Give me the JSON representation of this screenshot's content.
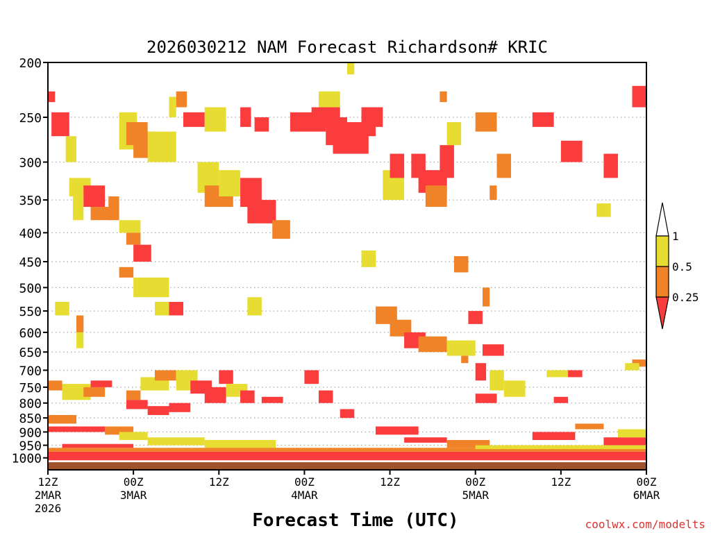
{
  "chart_data": {
    "type": "heatmap",
    "title": "2026030212 NAM Forecast Richardson# KRIC",
    "xlabel": "Forecast Time (UTC)",
    "ylabel": "Pressure (hPa)",
    "ylim": [
      1050,
      200
    ],
    "xlim_hours": [
      0,
      84
    ],
    "y_ticks": [
      200,
      250,
      300,
      350,
      400,
      450,
      500,
      550,
      600,
      650,
      700,
      750,
      800,
      850,
      900,
      950,
      1000
    ],
    "x_ticks": [
      {
        "hour": 0,
        "top": "12Z",
        "mid": "2MAR",
        "bottom": "2026"
      },
      {
        "hour": 12,
        "top": "00Z",
        "mid": "3MAR",
        "bottom": ""
      },
      {
        "hour": 24,
        "top": "12Z",
        "mid": "",
        "bottom": ""
      },
      {
        "hour": 36,
        "top": "00Z",
        "mid": "4MAR",
        "bottom": ""
      },
      {
        "hour": 48,
        "top": "12Z",
        "mid": "",
        "bottom": ""
      },
      {
        "hour": 60,
        "top": "00Z",
        "mid": "5MAR",
        "bottom": ""
      },
      {
        "hour": 72,
        "top": "12Z",
        "mid": "",
        "bottom": ""
      },
      {
        "hour": 84,
        "top": "00Z",
        "mid": "6MAR",
        "bottom": ""
      }
    ],
    "colorbar": {
      "bins": [
        {
          "label": "0.25",
          "color": "#fa3c3c",
          "range": "< 0.25"
        },
        {
          "label": "0.5",
          "color": "#f08228",
          "range": "0.25 - 0.5"
        },
        {
          "label": "1",
          "color": "#e6dc32",
          "range": "0.5 - 1"
        },
        {
          "label": "",
          "color": "#ffffff",
          "range": "> 1"
        }
      ],
      "tick_labels": [
        "1",
        "0.5",
        "0.25"
      ]
    },
    "surface_color": "#a0522d",
    "color_key": {
      "r": "#fa3c3c",
      "o": "#f08228",
      "y": "#e6dc32"
    },
    "patches": [
      {
        "t": [
          0,
          1
        ],
        "p": [
          225,
          235
        ],
        "c": "r"
      },
      {
        "t": [
          0.5,
          3
        ],
        "p": [
          245,
          270
        ],
        "c": "r"
      },
      {
        "t": [
          2.5,
          4
        ],
        "p": [
          270,
          300
        ],
        "c": "y"
      },
      {
        "t": [
          3,
          6
        ],
        "p": [
          320,
          345
        ],
        "c": "y"
      },
      {
        "t": [
          3.5,
          5
        ],
        "p": [
          345,
          380
        ],
        "c": "y"
      },
      {
        "t": [
          5,
          8
        ],
        "p": [
          330,
          360
        ],
        "c": "r"
      },
      {
        "t": [
          6,
          9
        ],
        "p": [
          360,
          380
        ],
        "c": "o"
      },
      {
        "t": [
          8.5,
          10
        ],
        "p": [
          345,
          380
        ],
        "c": "o"
      },
      {
        "t": [
          10,
          12.5
        ],
        "p": [
          245,
          285
        ],
        "c": "y"
      },
      {
        "t": [
          11,
          14
        ],
        "p": [
          255,
          280
        ],
        "c": "o"
      },
      {
        "t": [
          12,
          15
        ],
        "p": [
          265,
          295
        ],
        "c": "o"
      },
      {
        "t": [
          14,
          18
        ],
        "p": [
          265,
          300
        ],
        "c": "y"
      },
      {
        "t": [
          17,
          18
        ],
        "p": [
          230,
          250
        ],
        "c": "y"
      },
      {
        "t": [
          18,
          19.5
        ],
        "p": [
          225,
          240
        ],
        "c": "o"
      },
      {
        "t": [
          19,
          22
        ],
        "p": [
          245,
          260
        ],
        "c": "r"
      },
      {
        "t": [
          22,
          25
        ],
        "p": [
          240,
          265
        ],
        "c": "y"
      },
      {
        "t": [
          21,
          24
        ],
        "p": [
          300,
          340
        ],
        "c": "y"
      },
      {
        "t": [
          22,
          26
        ],
        "p": [
          330,
          360
        ],
        "c": "o"
      },
      {
        "t": [
          24,
          27
        ],
        "p": [
          310,
          345
        ],
        "c": "y"
      },
      {
        "t": [
          27,
          30
        ],
        "p": [
          320,
          360
        ],
        "c": "r"
      },
      {
        "t": [
          28,
          32
        ],
        "p": [
          350,
          385
        ],
        "c": "r"
      },
      {
        "t": [
          27,
          28.5
        ],
        "p": [
          240,
          260
        ],
        "c": "r"
      },
      {
        "t": [
          29,
          31
        ],
        "p": [
          250,
          265
        ],
        "c": "r"
      },
      {
        "t": [
          31.5,
          34
        ],
        "p": [
          380,
          410
        ],
        "c": "o"
      },
      {
        "t": [
          34,
          39
        ],
        "p": [
          245,
          265
        ],
        "c": "r"
      },
      {
        "t": [
          37,
          41
        ],
        "p": [
          240,
          260
        ],
        "c": "r"
      },
      {
        "t": [
          39,
          42
        ],
        "p": [
          250,
          280
        ],
        "c": "r"
      },
      {
        "t": [
          40,
          45
        ],
        "p": [
          265,
          290
        ],
        "c": "r"
      },
      {
        "t": [
          42,
          46
        ],
        "p": [
          255,
          270
        ],
        "c": "r"
      },
      {
        "t": [
          44,
          47
        ],
        "p": [
          240,
          260
        ],
        "c": "r"
      },
      {
        "t": [
          38,
          41
        ],
        "p": [
          225,
          240
        ],
        "c": "y"
      },
      {
        "t": [
          42,
          43
        ],
        "p": [
          200,
          210
        ],
        "c": "y"
      },
      {
        "t": [
          47,
          50
        ],
        "p": [
          310,
          350
        ],
        "c": "y"
      },
      {
        "t": [
          48,
          50
        ],
        "p": [
          290,
          320
        ],
        "c": "r"
      },
      {
        "t": [
          51,
          53
        ],
        "p": [
          290,
          320
        ],
        "c": "r"
      },
      {
        "t": [
          52,
          56
        ],
        "p": [
          310,
          340
        ],
        "c": "r"
      },
      {
        "t": [
          53,
          56
        ],
        "p": [
          330,
          360
        ],
        "c": "o"
      },
      {
        "t": [
          55,
          57
        ],
        "p": [
          280,
          320
        ],
        "c": "r"
      },
      {
        "t": [
          55,
          56
        ],
        "p": [
          225,
          235
        ],
        "c": "o"
      },
      {
        "t": [
          56,
          58
        ],
        "p": [
          255,
          280
        ],
        "c": "y"
      },
      {
        "t": [
          60,
          63
        ],
        "p": [
          245,
          265
        ],
        "c": "o"
      },
      {
        "t": [
          63,
          65
        ],
        "p": [
          290,
          320
        ],
        "c": "o"
      },
      {
        "t": [
          62,
          63
        ],
        "p": [
          330,
          350
        ],
        "c": "o"
      },
      {
        "t": [
          68,
          71
        ],
        "p": [
          245,
          260
        ],
        "c": "r"
      },
      {
        "t": [
          72,
          75
        ],
        "p": [
          275,
          300
        ],
        "c": "r"
      },
      {
        "t": [
          78,
          80
        ],
        "p": [
          290,
          320
        ],
        "c": "r"
      },
      {
        "t": [
          82,
          84
        ],
        "p": [
          220,
          240
        ],
        "c": "r"
      },
      {
        "t": [
          77,
          79
        ],
        "p": [
          355,
          375
        ],
        "c": "y"
      },
      {
        "t": [
          10,
          13
        ],
        "p": [
          380,
          400
        ],
        "c": "y"
      },
      {
        "t": [
          11,
          13
        ],
        "p": [
          400,
          420
        ],
        "c": "o"
      },
      {
        "t": [
          12,
          14.5
        ],
        "p": [
          420,
          450
        ],
        "c": "r"
      },
      {
        "t": [
          10,
          12
        ],
        "p": [
          460,
          480
        ],
        "c": "o"
      },
      {
        "t": [
          12,
          17
        ],
        "p": [
          480,
          520
        ],
        "c": "y"
      },
      {
        "t": [
          15,
          17
        ],
        "p": [
          530,
          560
        ],
        "c": "y"
      },
      {
        "t": [
          17,
          19
        ],
        "p": [
          530,
          560
        ],
        "c": "r"
      },
      {
        "t": [
          1,
          3
        ],
        "p": [
          530,
          560
        ],
        "c": "y"
      },
      {
        "t": [
          4,
          5
        ],
        "p": [
          560,
          600
        ],
        "c": "o"
      },
      {
        "t": [
          4,
          5
        ],
        "p": [
          600,
          640
        ],
        "c": "y"
      },
      {
        "t": [
          28,
          30
        ],
        "p": [
          520,
          560
        ],
        "c": "y"
      },
      {
        "t": [
          44,
          46
        ],
        "p": [
          430,
          460
        ],
        "c": "y"
      },
      {
        "t": [
          46,
          49
        ],
        "p": [
          540,
          580
        ],
        "c": "o"
      },
      {
        "t": [
          48,
          51
        ],
        "p": [
          570,
          610
        ],
        "c": "o"
      },
      {
        "t": [
          50,
          53
        ],
        "p": [
          600,
          640
        ],
        "c": "r"
      },
      {
        "t": [
          52,
          56
        ],
        "p": [
          610,
          650
        ],
        "c": "o"
      },
      {
        "t": [
          56,
          60
        ],
        "p": [
          620,
          660
        ],
        "c": "y"
      },
      {
        "t": [
          58,
          59
        ],
        "p": [
          660,
          680
        ],
        "c": "o"
      },
      {
        "t": [
          59,
          61
        ],
        "p": [
          550,
          580
        ],
        "c": "r"
      },
      {
        "t": [
          57,
          59
        ],
        "p": [
          440,
          470
        ],
        "c": "o"
      },
      {
        "t": [
          61,
          64
        ],
        "p": [
          630,
          660
        ],
        "c": "r"
      },
      {
        "t": [
          62,
          64
        ],
        "p": [
          700,
          760
        ],
        "c": "y"
      },
      {
        "t": [
          64,
          67
        ],
        "p": [
          730,
          780
        ],
        "c": "y"
      },
      {
        "t": [
          60,
          63
        ],
        "p": [
          770,
          800
        ],
        "c": "r"
      },
      {
        "t": [
          60,
          61.5
        ],
        "p": [
          680,
          730
        ],
        "c": "r"
      },
      {
        "t": [
          61,
          62
        ],
        "p": [
          500,
          540
        ],
        "c": "o"
      },
      {
        "t": [
          70,
          74
        ],
        "p": [
          700,
          720
        ],
        "c": "y"
      },
      {
        "t": [
          73,
          75
        ],
        "p": [
          700,
          720
        ],
        "c": "r"
      },
      {
        "t": [
          71,
          73
        ],
        "p": [
          780,
          800
        ],
        "c": "r"
      },
      {
        "t": [
          82,
          84
        ],
        "p": [
          670,
          690
        ],
        "c": "o"
      },
      {
        "t": [
          81,
          83
        ],
        "p": [
          680,
          700
        ],
        "c": "y"
      },
      {
        "t": [
          0,
          2
        ],
        "p": [
          730,
          760
        ],
        "c": "o"
      },
      {
        "t": [
          2,
          6
        ],
        "p": [
          740,
          790
        ],
        "c": "y"
      },
      {
        "t": [
          5,
          8
        ],
        "p": [
          750,
          780
        ],
        "c": "o"
      },
      {
        "t": [
          6,
          9
        ],
        "p": [
          730,
          750
        ],
        "c": "r"
      },
      {
        "t": [
          11,
          13
        ],
        "p": [
          760,
          790
        ],
        "c": "o"
      },
      {
        "t": [
          13,
          17
        ],
        "p": [
          720,
          760
        ],
        "c": "y"
      },
      {
        "t": [
          15,
          18
        ],
        "p": [
          700,
          730
        ],
        "c": "o"
      },
      {
        "t": [
          18,
          21
        ],
        "p": [
          700,
          760
        ],
        "c": "y"
      },
      {
        "t": [
          20,
          23
        ],
        "p": [
          730,
          770
        ],
        "c": "r"
      },
      {
        "t": [
          22,
          25
        ],
        "p": [
          750,
          800
        ],
        "c": "r"
      },
      {
        "t": [
          24,
          26
        ],
        "p": [
          700,
          740
        ],
        "c": "r"
      },
      {
        "t": [
          25,
          28
        ],
        "p": [
          740,
          780
        ],
        "c": "y"
      },
      {
        "t": [
          27,
          29
        ],
        "p": [
          760,
          800
        ],
        "c": "r"
      },
      {
        "t": [
          30,
          33
        ],
        "p": [
          780,
          800
        ],
        "c": "r"
      },
      {
        "t": [
          36,
          38
        ],
        "p": [
          700,
          740
        ],
        "c": "r"
      },
      {
        "t": [
          38,
          40
        ],
        "p": [
          760,
          800
        ],
        "c": "r"
      },
      {
        "t": [
          41,
          43
        ],
        "p": [
          820,
          850
        ],
        "c": "r"
      },
      {
        "t": [
          11,
          14
        ],
        "p": [
          790,
          820
        ],
        "c": "r"
      },
      {
        "t": [
          14,
          17
        ],
        "p": [
          810,
          840
        ],
        "c": "r"
      },
      {
        "t": [
          17,
          20
        ],
        "p": [
          800,
          830
        ],
        "c": "r"
      },
      {
        "t": [
          0,
          4
        ],
        "p": [
          840,
          870
        ],
        "c": "o"
      },
      {
        "t": [
          0,
          8
        ],
        "p": [
          880,
          900
        ],
        "c": "r"
      },
      {
        "t": [
          8,
          12
        ],
        "p": [
          880,
          910
        ],
        "c": "o"
      },
      {
        "t": [
          10,
          14
        ],
        "p": [
          900,
          930
        ],
        "c": "y"
      },
      {
        "t": [
          14,
          22
        ],
        "p": [
          920,
          950
        ],
        "c": "y"
      },
      {
        "t": [
          22,
          32
        ],
        "p": [
          930,
          960
        ],
        "c": "y"
      },
      {
        "t": [
          46,
          52
        ],
        "p": [
          880,
          910
        ],
        "c": "r"
      },
      {
        "t": [
          50,
          56
        ],
        "p": [
          920,
          940
        ],
        "c": "r"
      },
      {
        "t": [
          56,
          62
        ],
        "p": [
          930,
          960
        ],
        "c": "o"
      },
      {
        "t": [
          68,
          74
        ],
        "p": [
          900,
          930
        ],
        "c": "r"
      },
      {
        "t": [
          74,
          78
        ],
        "p": [
          870,
          890
        ],
        "c": "o"
      },
      {
        "t": [
          78,
          84
        ],
        "p": [
          920,
          950
        ],
        "c": "r"
      },
      {
        "t": [
          80,
          84
        ],
        "p": [
          890,
          920
        ],
        "c": "y"
      },
      {
        "t": [
          0,
          84
        ],
        "p": [
          975,
          1010
        ],
        "c": "r"
      },
      {
        "t": [
          0,
          84
        ],
        "p": [
          960,
          975
        ],
        "c": "o"
      },
      {
        "t": [
          2,
          12
        ],
        "p": [
          945,
          960
        ],
        "c": "r"
      },
      {
        "t": [
          60,
          84
        ],
        "p": [
          950,
          965
        ],
        "c": "y"
      }
    ]
  },
  "credit": "coolwx.com/modelts"
}
